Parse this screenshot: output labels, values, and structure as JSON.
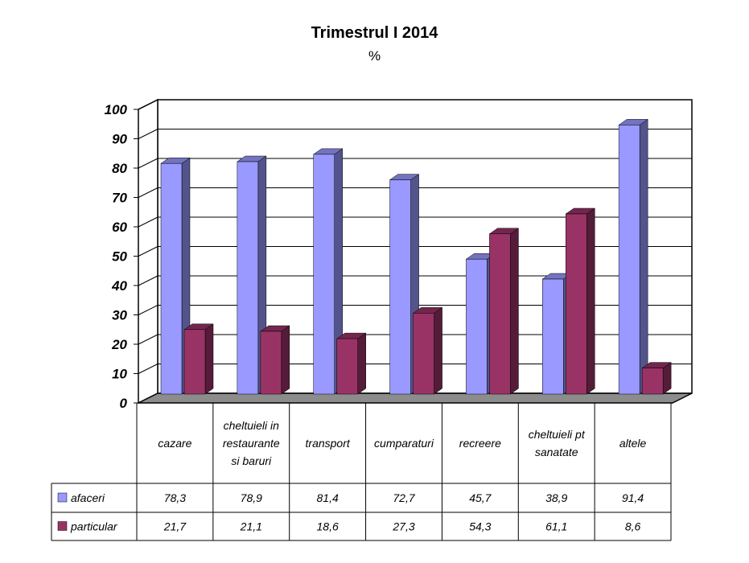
{
  "chart_data": {
    "type": "bar",
    "title": "Trimestrul I 2014",
    "subtitle": "%",
    "categories": [
      [
        "cazare"
      ],
      [
        "cheltuieli in",
        "restaurante",
        "si baruri"
      ],
      [
        "transport"
      ],
      [
        "cumparaturi"
      ],
      [
        "recreere"
      ],
      [
        "cheltuieli pt",
        "sanatate"
      ],
      [
        "altele"
      ]
    ],
    "series": [
      {
        "name": "afaceri",
        "color": "#9999ff",
        "values": [
          78.3,
          78.9,
          81.4,
          72.7,
          45.7,
          38.9,
          91.4
        ],
        "labels": [
          "78,3",
          "78,9",
          "81,4",
          "72,7",
          "45,7",
          "38,9",
          "91,4"
        ]
      },
      {
        "name": "particular",
        "color": "#993366",
        "values": [
          21.7,
          21.1,
          18.6,
          27.3,
          54.3,
          61.1,
          8.6
        ],
        "labels": [
          "21,7",
          "21,1",
          "18,6",
          "27,3",
          "54,3",
          "61,1",
          "8,6"
        ]
      }
    ],
    "ylim": [
      0,
      100
    ],
    "yticks": [
      "0",
      "10",
      "20",
      "30",
      "40",
      "50",
      "60",
      "70",
      "80",
      "90",
      "100"
    ],
    "grid": true,
    "legend": "data-table"
  }
}
